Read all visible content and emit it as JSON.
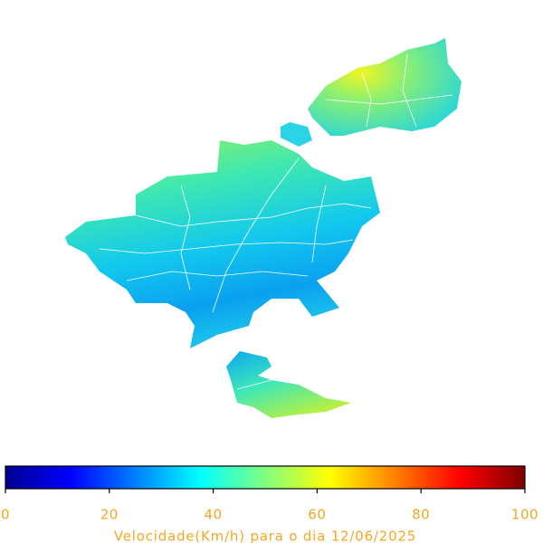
{
  "colorbar": {
    "label": "Velocidade(Km/h) para o dia 12/06/2025",
    "lim": [
      0,
      100
    ],
    "ticks": [
      0,
      20,
      40,
      60,
      80,
      100
    ],
    "colormap": "jet"
  }
}
